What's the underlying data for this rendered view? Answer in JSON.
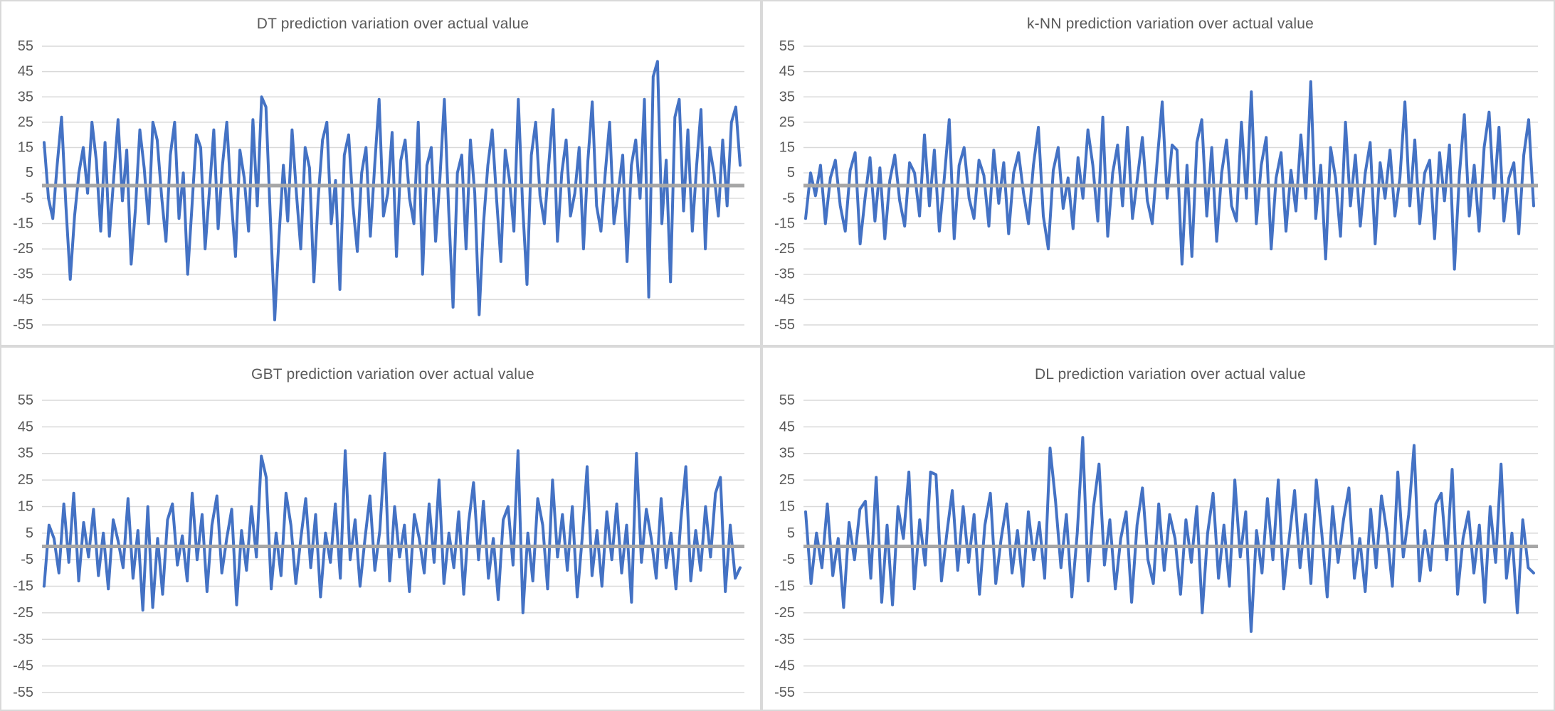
{
  "axis": {
    "yticks": [
      55,
      45,
      35,
      25,
      15,
      5,
      -5,
      -15,
      -25,
      -35,
      -45,
      -55
    ],
    "ylim": [
      -55,
      55
    ],
    "x_axis_labels": "none",
    "legend": "none",
    "grid": "horizontal-only"
  },
  "colors": {
    "series_blue": "#4472c4",
    "baseline_gray": "#a6a6a6",
    "gridline": "#d9d9d9",
    "text_gray": "#595959",
    "panel_background": "#ffffff",
    "divider": "#d9d9d9"
  },
  "chart_data": [
    {
      "id": "dt",
      "type": "line",
      "title": "DT prediction variation over actual value",
      "ylim": [
        -55,
        55
      ],
      "baseline": {
        "name": "actual value (zero baseline)",
        "constant": 0
      },
      "series": [
        {
          "name": "DT prediction variation",
          "values": [
            17,
            -5,
            -13,
            8,
            27,
            -8,
            -37,
            -12,
            5,
            15,
            -3,
            25,
            10,
            -18,
            17,
            -20,
            3,
            26,
            -6,
            14,
            -31,
            -9,
            22,
            7,
            -15,
            25,
            18,
            -4,
            -22,
            12,
            25,
            -13,
            5,
            -35,
            -8,
            20,
            15,
            -25,
            -2,
            22,
            -17,
            8,
            25,
            -5,
            -28,
            14,
            3,
            -18,
            26,
            -8,
            35,
            31,
            -12,
            -53,
            -20,
            8,
            -14,
            22,
            -3,
            -25,
            15,
            7,
            -38,
            -5,
            18,
            25,
            -15,
            2,
            -41,
            12,
            20,
            -8,
            -26,
            5,
            15,
            -20,
            8,
            34,
            -12,
            -3,
            21,
            -28,
            10,
            18,
            -5,
            -15,
            25,
            -35,
            8,
            15,
            -22,
            3,
            34,
            -10,
            -48,
            5,
            12,
            -25,
            18,
            -3,
            -51,
            -15,
            8,
            22,
            -5,
            -30,
            14,
            2,
            -18,
            34,
            -8,
            -39,
            12,
            25,
            -4,
            -15,
            8,
            30,
            -22,
            5,
            18,
            -12,
            -3,
            15,
            -25,
            10,
            33,
            -8,
            -18,
            5,
            25,
            -15,
            -2,
            12,
            -30,
            8,
            18,
            -5,
            34,
            -44,
            43,
            49,
            -15,
            10,
            -38,
            27,
            34,
            -10,
            22,
            -18,
            8,
            30,
            -25,
            15,
            5,
            -12,
            18,
            -8,
            25,
            31,
            8
          ]
        }
      ]
    },
    {
      "id": "knn",
      "type": "line",
      "title": "k-NN prediction variation over actual value",
      "ylim": [
        -55,
        55
      ],
      "baseline": {
        "name": "actual value (zero baseline)",
        "constant": 0
      },
      "series": [
        {
          "name": "k-NN prediction variation",
          "values": [
            -13,
            5,
            -4,
            8,
            -15,
            3,
            10,
            -8,
            -18,
            6,
            13,
            -23,
            -5,
            11,
            -14,
            7,
            -21,
            2,
            12,
            -6,
            -16,
            9,
            5,
            -12,
            20,
            -8,
            14,
            -18,
            3,
            26,
            -21,
            8,
            15,
            -5,
            -13,
            10,
            4,
            -16,
            14,
            -7,
            9,
            -19,
            5,
            13,
            -3,
            -15,
            8,
            23,
            -12,
            -25,
            6,
            15,
            -9,
            3,
            -17,
            11,
            -5,
            22,
            8,
            -14,
            27,
            -20,
            5,
            16,
            -8,
            23,
            -13,
            3,
            19,
            -6,
            -15,
            10,
            33,
            -5,
            16,
            14,
            -31,
            8,
            -28,
            17,
            26,
            -12,
            15,
            -22,
            5,
            18,
            -8,
            -14,
            25,
            -5,
            37,
            -15,
            8,
            19,
            -25,
            3,
            13,
            -18,
            6,
            -10,
            20,
            -5,
            41,
            -13,
            8,
            -29,
            15,
            3,
            -20,
            25,
            -8,
            12,
            -16,
            5,
            17,
            -23,
            9,
            -5,
            14,
            -12,
            3,
            33,
            -8,
            18,
            -15,
            5,
            10,
            -21,
            13,
            -6,
            16,
            -33,
            4,
            28,
            -12,
            8,
            -18,
            15,
            29,
            -5,
            23,
            -14,
            3,
            9,
            -19,
            12,
            26,
            -8
          ]
        }
      ]
    },
    {
      "id": "gbt",
      "type": "line",
      "title": "GBT prediction variation over actual value",
      "ylim": [
        -55,
        55
      ],
      "baseline": {
        "name": "actual value (zero baseline)",
        "constant": 0
      },
      "series": [
        {
          "name": "GBT prediction variation",
          "values": [
            -15,
            8,
            3,
            -10,
            16,
            -6,
            20,
            -13,
            9,
            -4,
            14,
            -11,
            5,
            -16,
            10,
            2,
            -8,
            18,
            -12,
            6,
            -24,
            15,
            -23,
            3,
            -18,
            10,
            16,
            -7,
            4,
            -13,
            20,
            -5,
            12,
            -17,
            8,
            19,
            -10,
            3,
            14,
            -22,
            6,
            -9,
            15,
            -4,
            34,
            26,
            -16,
            5,
            -11,
            20,
            8,
            -14,
            3,
            18,
            -8,
            12,
            -19,
            5,
            -6,
            16,
            -12,
            36,
            -5,
            10,
            -15,
            3,
            19,
            -9,
            6,
            35,
            -13,
            15,
            -4,
            8,
            -17,
            12,
            3,
            -10,
            16,
            -6,
            25,
            -14,
            5,
            -8,
            13,
            -18,
            9,
            24,
            -5,
            17,
            -12,
            3,
            -20,
            10,
            15,
            -7,
            36,
            -25,
            5,
            -13,
            18,
            8,
            -16,
            25,
            -4,
            12,
            -9,
            15,
            -19,
            3,
            30,
            -11,
            6,
            -15,
            13,
            -5,
            16,
            -10,
            8,
            -21,
            35,
            -6,
            14,
            3,
            -12,
            18,
            -8,
            5,
            -16,
            10,
            30,
            -13,
            6,
            -9,
            15,
            -4,
            20,
            26,
            -17,
            8,
            -12,
            -8
          ]
        }
      ]
    },
    {
      "id": "dl",
      "type": "line",
      "title": "DL prediction variation over actual value",
      "ylim": [
        -55,
        55
      ],
      "baseline": {
        "name": "actual value (zero baseline)",
        "constant": 0
      },
      "series": [
        {
          "name": "DL prediction variation",
          "values": [
            13,
            -14,
            5,
            -8,
            16,
            -11,
            3,
            -23,
            9,
            -5,
            14,
            17,
            -12,
            26,
            -21,
            8,
            -22,
            15,
            3,
            28,
            -16,
            10,
            -7,
            28,
            27,
            -13,
            5,
            21,
            -9,
            15,
            -6,
            12,
            -18,
            8,
            20,
            -14,
            3,
            16,
            -10,
            6,
            -15,
            13,
            -5,
            9,
            -12,
            37,
            17,
            -8,
            12,
            -19,
            5,
            41,
            -13,
            15,
            31,
            -7,
            10,
            -16,
            3,
            13,
            -21,
            8,
            22,
            -5,
            -14,
            16,
            -9,
            12,
            3,
            -18,
            10,
            -6,
            15,
            -25,
            5,
            20,
            -12,
            8,
            -15,
            25,
            -4,
            13,
            -32,
            6,
            -10,
            18,
            -5,
            25,
            -16,
            3,
            21,
            -8,
            12,
            -14,
            25,
            5,
            -19,
            15,
            -6,
            10,
            22,
            -12,
            3,
            -17,
            14,
            -8,
            19,
            5,
            -15,
            28,
            -4,
            12,
            38,
            -13,
            6,
            -9,
            16,
            20,
            -5,
            29,
            -18,
            3,
            13,
            -10,
            8,
            -21,
            15,
            -6,
            31,
            -12,
            5,
            -25,
            10,
            -8,
            -10
          ]
        }
      ]
    }
  ]
}
